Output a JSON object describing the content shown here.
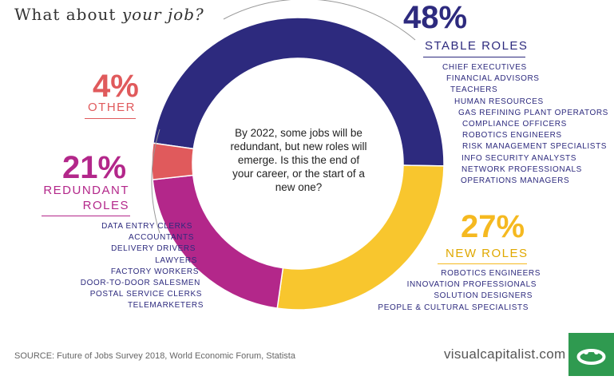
{
  "title": {
    "plain": "What about ",
    "italic": "your job?"
  },
  "center_text": "By 2022, some jobs will be redundant, but new roles will emerge. Is this the end of your career, or the start of a new one?",
  "chart_data": {
    "type": "pie",
    "slices": [
      {
        "label": "STABLE ROLES",
        "value": 48,
        "pct_label": "48%",
        "color": "#2d2a7e"
      },
      {
        "label": "NEW ROLES",
        "value": 27,
        "pct_label": "27%",
        "color": "#f8c62e"
      },
      {
        "label": "REDUNDANT ROLES",
        "value": 21,
        "pct_label": "21%",
        "color": "#b3278a"
      },
      {
        "label": "OTHER",
        "value": 4,
        "pct_label": "4%",
        "color": "#e05a5c"
      }
    ]
  },
  "stable": {
    "pct": "48%",
    "label": "STABLE ROLES",
    "color": "#2d2a7e",
    "jobs": [
      "CHIEF EXECUTIVES",
      "FINANCIAL ADVISORS",
      "TEACHERS",
      "HUMAN RESOURCES",
      "GAS REFINING PLANT OPERATORS",
      "COMPLIANCE OFFICERS",
      "ROBOTICS ENGINEERS",
      "RISK MANAGEMENT SPECIALISTS",
      "INFO SECURITY ANALYSTS",
      "NETWORK PROFESSIONALS",
      "OPERATIONS MANAGERS"
    ]
  },
  "new": {
    "pct": "27%",
    "label": "NEW ROLES",
    "color": "#f5b920",
    "jobs": [
      "ROBOTICS ENGINEERS",
      "INNOVATION PROFESSIONALS",
      "SOLUTION DESIGNERS",
      "PEOPLE & CULTURAL SPECIALISTS"
    ]
  },
  "redundant": {
    "pct": "21%",
    "label_line1": "REDUNDANT",
    "label_line2": "ROLES",
    "color": "#b3278a",
    "jobs": [
      "DATA ENTRY CLERKS",
      "ACCOUNTANTS",
      "DELIVERY DRIVERS",
      "LAWYERS",
      "FACTORY WORKERS",
      "DOOR-TO-DOOR SALESMEN",
      "POSTAL SERVICE CLERKS",
      "TELEMARKETERS"
    ]
  },
  "other": {
    "pct": "4%",
    "label": "OTHER",
    "color": "#e05a5c"
  },
  "source": "SOURCE: Future of Jobs Survey 2018, World Economic Forum, Statista",
  "brand": "visualcapitalist.com"
}
